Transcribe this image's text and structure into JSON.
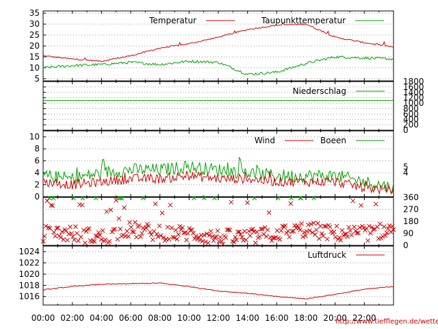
{
  "credit": "http://www.tiefflegen.de/wetter/",
  "colors": {
    "red": "#cc0000",
    "green": "#00a000",
    "grid": "#999999",
    "frame": "#000000"
  },
  "chart_data": [
    {
      "type": "line",
      "x": [
        "00:00",
        "02:00",
        "04:00",
        "06:00",
        "08:00",
        "10:00",
        "12:00",
        "14:00",
        "16:00",
        "18:00",
        "20:00",
        "22:00",
        "24:00"
      ],
      "series": [
        {
          "name": "Temperatur",
          "color": "#cc0000",
          "values": [
            15.5,
            14.0,
            13.0,
            15.5,
            19.0,
            21.0,
            24.0,
            27.5,
            29.5,
            30.0,
            24.0,
            21.5,
            19.5
          ]
        },
        {
          "name": "Taupunkttemperatur",
          "color": "#00a000",
          "values": [
            10.0,
            11.0,
            11.5,
            12.5,
            11.5,
            13.0,
            12.5,
            7.0,
            8.0,
            12.0,
            15.0,
            14.5,
            14.0
          ]
        }
      ],
      "yticks": [
        5,
        10,
        15,
        20,
        25,
        30,
        35
      ],
      "ylim": [
        4,
        36
      ]
    },
    {
      "type": "line",
      "x": [
        "00:00",
        "24:00"
      ],
      "series": [
        {
          "name": "Niederschlag",
          "color": "#00a000",
          "values": [
            1100,
            1100
          ]
        }
      ],
      "yticks": [
        0,
        200,
        400,
        600,
        800,
        1000,
        1200,
        1400,
        1600,
        1800
      ],
      "ylim": [
        0,
        1800
      ]
    },
    {
      "type": "line",
      "x": [
        "00:00",
        "02:00",
        "04:00",
        "06:00",
        "08:00",
        "10:00",
        "12:00",
        "14:00",
        "16:00",
        "18:00",
        "20:00",
        "22:00",
        "24:00"
      ],
      "series": [
        {
          "name": "Wind",
          "color": "#cc0000",
          "values": [
            2.5,
            2.0,
            2.5,
            3.0,
            3.0,
            3.5,
            3.0,
            3.0,
            2.5,
            2.5,
            2.5,
            1.5,
            1.0
          ]
        },
        {
          "name": "Boeen",
          "color": "#00a000",
          "values": [
            3.5,
            3.0,
            4.0,
            4.5,
            4.5,
            5.0,
            4.5,
            4.0,
            3.5,
            3.5,
            3.5,
            2.5,
            1.5
          ]
        }
      ],
      "yticks": [
        0,
        2,
        4,
        6,
        8,
        10
      ],
      "ylim": [
        0,
        11
      ],
      "yticks_right": [
        4,
        5
      ]
    },
    {
      "type": "scatter",
      "title": "",
      "x": [
        "00:00",
        "02:00",
        "04:00",
        "06:00",
        "08:00",
        "10:00",
        "12:00",
        "14:00",
        "16:00",
        "18:00",
        "20:00",
        "22:00",
        "24:00"
      ],
      "series": [
        {
          "color": "#cc0000",
          "values": [
            90,
            90,
            60,
            120,
            90,
            90,
            60,
            60,
            90,
            120,
            90,
            90,
            120
          ]
        },
        {
          "color": "#00a000",
          "values": [
            360,
            360,
            360,
            360,
            360,
            360,
            360,
            360,
            360,
            360,
            360,
            360,
            360
          ]
        }
      ],
      "yticks_right": [
        0,
        90,
        180,
        270,
        360
      ],
      "ylim": [
        0,
        360
      ]
    },
    {
      "type": "line",
      "x": [
        "00:00",
        "02:00",
        "04:00",
        "06:00",
        "08:00",
        "10:00",
        "12:00",
        "14:00",
        "16:00",
        "18:00",
        "20:00",
        "22:00",
        "24:00"
      ],
      "series": [
        {
          "name": "Luftdruck",
          "color": "#cc0000",
          "values": [
            1017.2,
            1017.8,
            1018.2,
            1018.3,
            1018.4,
            1017.8,
            1017.0,
            1016.6,
            1016.0,
            1015.6,
            1016.4,
            1017.3,
            1017.8
          ]
        }
      ],
      "yticks": [
        1016,
        1018,
        1020,
        1022,
        1024
      ],
      "ylim": [
        1014.5,
        1025
      ]
    }
  ],
  "xticks": [
    "00:00",
    "02:00",
    "04:00",
    "06:00",
    "08:00",
    "10:00",
    "12:00",
    "14:00",
    "16:00",
    "18:00",
    "20:00",
    "22:00"
  ]
}
